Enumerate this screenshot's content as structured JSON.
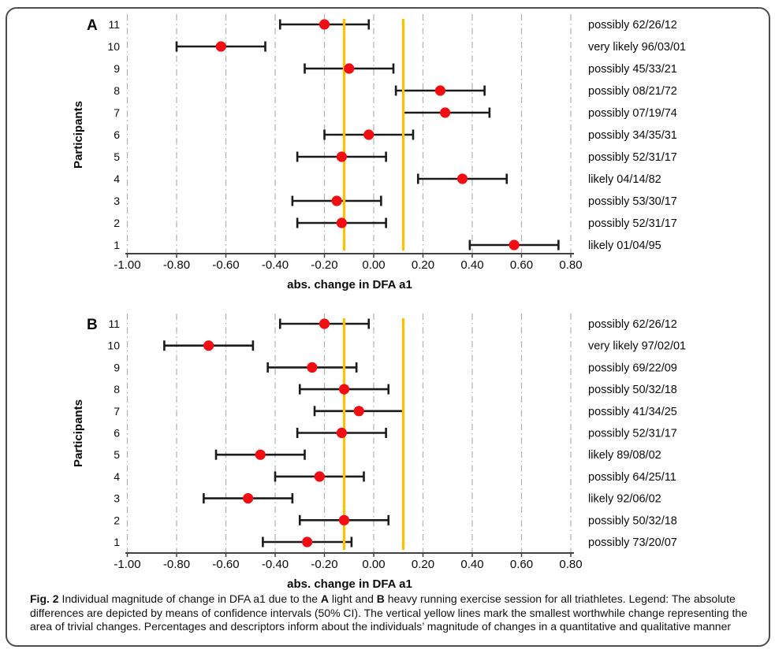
{
  "figure": {
    "caption_segments": [
      {
        "text": "Fig. 2",
        "bold": true
      },
      {
        "text": "  Individual magnitude of change in DFA a1 due to the ",
        "bold": false
      },
      {
        "text": "A",
        "bold": true
      },
      {
        "text": " light and ",
        "bold": false
      },
      {
        "text": "B",
        "bold": true
      },
      {
        "text": " heavy running exercise session for all triathletes. Legend: The absolute differences are depicted by means of confidence intervals (50% CI). The vertical yellow lines mark the smallest worthwhile change representing the area of trivial changes. Percentages and descriptors inform about the individuals’ magnitude of changes in a quantitative and qualitative manner",
        "bold": false
      }
    ]
  },
  "colors": {
    "marker": "#f20d13",
    "swc_line": "#ffc000",
    "error_bar": "#1b1b1b",
    "gridline": "#b0b0b0",
    "axis": "#404040",
    "text": "#0a0a0a"
  },
  "chart_data": [
    {
      "type": "scatter",
      "panel_letter": "A",
      "title": "",
      "xlabel": "abs. change in DFA a1",
      "ylabel": "Participants",
      "xlim": [
        -1.0,
        0.8
      ],
      "grid": true,
      "xtick_labels": [
        "-1.00",
        "-0.80",
        "-0.60",
        "-0.40",
        "-0.20",
        "0.00",
        "0.20",
        "0.40",
        "0.60",
        "0.80"
      ],
      "swc_lines": [
        -0.12,
        0.12
      ],
      "points": [
        {
          "participant": 11,
          "mean": -0.2,
          "ci_low": -0.38,
          "ci_high": -0.02,
          "label": "possibly 62/26/12"
        },
        {
          "participant": 10,
          "mean": -0.62,
          "ci_low": -0.8,
          "ci_high": -0.44,
          "label": "very likely 96/03/01"
        },
        {
          "participant": 9,
          "mean": -0.1,
          "ci_low": -0.28,
          "ci_high": 0.08,
          "label": "possibly 45/33/21"
        },
        {
          "participant": 8,
          "mean": 0.27,
          "ci_low": 0.09,
          "ci_high": 0.45,
          "label": "possibly 08/21/72"
        },
        {
          "participant": 7,
          "mean": 0.29,
          "ci_low": 0.12,
          "ci_high": 0.47,
          "label": "possibly 07/19/74"
        },
        {
          "participant": 6,
          "mean": -0.02,
          "ci_low": -0.2,
          "ci_high": 0.16,
          "label": "possibly 34/35/31"
        },
        {
          "participant": 5,
          "mean": -0.13,
          "ci_low": -0.31,
          "ci_high": 0.05,
          "label": "possibly 52/31/17"
        },
        {
          "participant": 4,
          "mean": 0.36,
          "ci_low": 0.18,
          "ci_high": 0.54,
          "label": "likely 04/14/82"
        },
        {
          "participant": 3,
          "mean": -0.15,
          "ci_low": -0.33,
          "ci_high": 0.03,
          "label": "possibly 53/30/17"
        },
        {
          "participant": 2,
          "mean": -0.13,
          "ci_low": -0.31,
          "ci_high": 0.05,
          "label": "possibly 52/31/17"
        },
        {
          "participant": 1,
          "mean": 0.57,
          "ci_low": 0.39,
          "ci_high": 0.75,
          "label": "likely 01/04/95"
        }
      ]
    },
    {
      "type": "scatter",
      "panel_letter": "B",
      "title": "",
      "xlabel": "abs. change in DFA a1",
      "ylabel": "Participants",
      "xlim": [
        -1.0,
        0.8
      ],
      "grid": true,
      "xtick_labels": [
        "-1.00",
        "-0.80",
        "-0.60",
        "-0.40",
        "-0.20",
        "0.00",
        "0.20",
        "0.40",
        "0.60",
        "0.80"
      ],
      "swc_lines": [
        -0.12,
        0.12
      ],
      "points": [
        {
          "participant": 11,
          "mean": -0.2,
          "ci_low": -0.38,
          "ci_high": -0.02,
          "label": "possibly 62/26/12"
        },
        {
          "participant": 10,
          "mean": -0.67,
          "ci_low": -0.85,
          "ci_high": -0.49,
          "label": "very likely 97/02/01"
        },
        {
          "participant": 9,
          "mean": -0.25,
          "ci_low": -0.43,
          "ci_high": -0.07,
          "label": "possibly 69/22/09"
        },
        {
          "participant": 8,
          "mean": -0.12,
          "ci_low": -0.3,
          "ci_high": 0.06,
          "label": "possibly 50/32/18"
        },
        {
          "participant": 7,
          "mean": -0.06,
          "ci_low": -0.24,
          "ci_high": 0.12,
          "label": "possibly 41/34/25"
        },
        {
          "participant": 6,
          "mean": -0.13,
          "ci_low": -0.31,
          "ci_high": 0.05,
          "label": "possibly 52/31/17"
        },
        {
          "participant": 5,
          "mean": -0.46,
          "ci_low": -0.64,
          "ci_high": -0.28,
          "label": "likely 89/08/02"
        },
        {
          "participant": 4,
          "mean": -0.22,
          "ci_low": -0.4,
          "ci_high": -0.04,
          "label": "possibly 64/25/11"
        },
        {
          "participant": 3,
          "mean": -0.51,
          "ci_low": -0.69,
          "ci_high": -0.33,
          "label": "likely 92/06/02"
        },
        {
          "participant": 2,
          "mean": -0.12,
          "ci_low": -0.3,
          "ci_high": 0.06,
          "label": "possibly 50/32/18"
        },
        {
          "participant": 1,
          "mean": -0.27,
          "ci_low": -0.45,
          "ci_high": -0.09,
          "label": "possibly 73/20/07"
        }
      ]
    }
  ]
}
